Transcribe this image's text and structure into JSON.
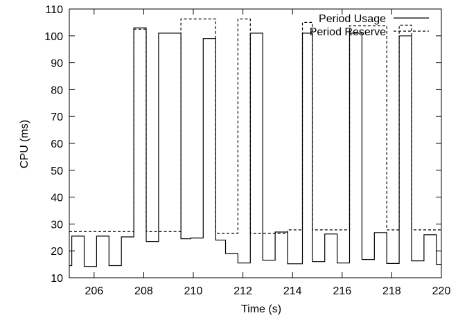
{
  "chart_data": {
    "type": "line",
    "title": "",
    "xlabel": "Time (s)",
    "ylabel": "CPU (ms)",
    "xlim": [
      205,
      220
    ],
    "ylim": [
      10,
      110
    ],
    "xticks": [
      206,
      208,
      210,
      212,
      214,
      216,
      218,
      220
    ],
    "yticks": [
      10,
      20,
      30,
      40,
      50,
      60,
      70,
      80,
      90,
      100,
      110
    ],
    "grid": false,
    "legend_position": "top-right",
    "series": [
      {
        "name": "Period Usage",
        "line_style": "solid",
        "color": "#000000",
        "step": true,
        "x": [
          205,
          205.1,
          205.6,
          206.1,
          206.6,
          207.1,
          207.6,
          208.1,
          208.6,
          209.1,
          209.5,
          209.9,
          210.4,
          210.9,
          211.3,
          211.8,
          212.3,
          212.8,
          213.3,
          213.8,
          214.4,
          214.8,
          215.3,
          215.8,
          216.3,
          216.8,
          217.3,
          217.8,
          218.3,
          218.8,
          219.3,
          219.8,
          220
        ],
        "values": [
          14.5,
          25.5,
          14.2,
          25.5,
          14.5,
          25.2,
          103.0,
          23.5,
          101.0,
          101.0,
          24.5,
          24.8,
          99.0,
          24.0,
          19.0,
          15.5,
          101.0,
          16.5,
          27.0,
          15.2,
          101.0,
          16.0,
          26.3,
          15.5,
          101.0,
          16.8,
          26.8,
          15.3,
          100.0,
          16.3,
          26.0,
          15.0,
          15.0
        ]
      },
      {
        "name": "Period Reserve",
        "line_style": "dashed",
        "color": "#000000",
        "step": true,
        "x": [
          205,
          207.6,
          208.1,
          209.5,
          209.9,
          210.9,
          211.3,
          211.8,
          212.3,
          213.3,
          213.8,
          214.4,
          214.8,
          215.8,
          216.3,
          217.8,
          218.3,
          218.8,
          219.3,
          220
        ],
        "values": [
          27.2,
          102.5,
          27.2,
          106.3,
          106.3,
          26.5,
          26.5,
          106.3,
          26.5,
          26.5,
          27.8,
          105.0,
          27.8,
          27.8,
          103.8,
          27.8,
          104.0,
          27.8,
          27.8,
          27.8
        ]
      }
    ]
  }
}
